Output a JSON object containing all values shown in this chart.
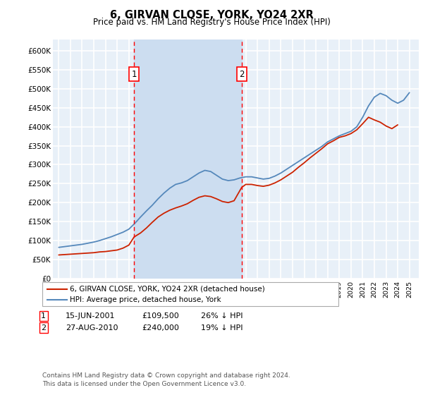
{
  "title": "6, GIRVAN CLOSE, YORK, YO24 2XR",
  "subtitle": "Price paid vs. HM Land Registry's House Price Index (HPI)",
  "ylim": [
    0,
    630000
  ],
  "yticks": [
    0,
    50000,
    100000,
    150000,
    200000,
    250000,
    300000,
    350000,
    400000,
    450000,
    500000,
    550000,
    600000
  ],
  "ytick_labels": [
    "£0",
    "£50K",
    "£100K",
    "£150K",
    "£200K",
    "£250K",
    "£300K",
    "£350K",
    "£400K",
    "£450K",
    "£500K",
    "£550K",
    "£600K"
  ],
  "xlim_start": 1994.5,
  "xlim_end": 2025.8,
  "bg_color": "#e8f0f8",
  "grid_color": "#ffffff",
  "transaction1_year": 2001.45,
  "transaction2_year": 2010.65,
  "line1_color": "#cc2200",
  "line2_color": "#5588bb",
  "shade_color": "#ccddf0",
  "legend_line1": "6, GIRVAN CLOSE, YORK, YO24 2XR (detached house)",
  "legend_line2": "HPI: Average price, detached house, York",
  "transaction_rows": [
    {
      "num": "1",
      "date": "15-JUN-2001",
      "price": "£109,500",
      "note": "26% ↓ HPI"
    },
    {
      "num": "2",
      "date": "27-AUG-2010",
      "price": "£240,000",
      "note": "19% ↓ HPI"
    }
  ],
  "footer": "Contains HM Land Registry data © Crown copyright and database right 2024.\nThis data is licensed under the Open Government Licence v3.0.",
  "hpi_years": [
    1995,
    1995.5,
    1996,
    1996.5,
    1997,
    1997.5,
    1998,
    1998.5,
    1999,
    1999.5,
    2000,
    2000.5,
    2001,
    2001.5,
    2002,
    2002.5,
    2003,
    2003.5,
    2004,
    2004.5,
    2005,
    2005.5,
    2006,
    2006.5,
    2007,
    2007.5,
    2008,
    2008.5,
    2009,
    2009.5,
    2010,
    2010.5,
    2011,
    2011.5,
    2012,
    2012.5,
    2013,
    2013.5,
    2014,
    2014.5,
    2015,
    2015.5,
    2016,
    2016.5,
    2017,
    2017.5,
    2018,
    2018.5,
    2019,
    2019.5,
    2020,
    2020.5,
    2021,
    2021.5,
    2022,
    2022.5,
    2023,
    2023.5,
    2024,
    2024.5,
    2025
  ],
  "hpi_values": [
    82000,
    84000,
    86000,
    88000,
    90000,
    93000,
    96000,
    100000,
    105000,
    110000,
    116000,
    122000,
    130000,
    145000,
    162000,
    178000,
    193000,
    210000,
    225000,
    238000,
    248000,
    252000,
    258000,
    268000,
    278000,
    285000,
    282000,
    272000,
    262000,
    258000,
    260000,
    265000,
    268000,
    268000,
    265000,
    262000,
    264000,
    270000,
    278000,
    288000,
    298000,
    308000,
    318000,
    328000,
    338000,
    348000,
    360000,
    368000,
    376000,
    382000,
    388000,
    400000,
    425000,
    455000,
    478000,
    488000,
    482000,
    470000,
    462000,
    470000,
    490000
  ],
  "red_years": [
    1995,
    1995.5,
    1996,
    1996.5,
    1997,
    1997.5,
    1998,
    1998.5,
    1999,
    1999.5,
    2000,
    2000.5,
    2001,
    2001.45,
    2002,
    2002.5,
    2003,
    2003.5,
    2004,
    2004.5,
    2005,
    2005.5,
    2006,
    2006.5,
    2007,
    2007.5,
    2008,
    2008.5,
    2009,
    2009.5,
    2010,
    2010.65,
    2011,
    2011.5,
    2012,
    2012.5,
    2013,
    2013.5,
    2014,
    2014.5,
    2015,
    2015.5,
    2016,
    2016.5,
    2017,
    2017.5,
    2018,
    2018.5,
    2019,
    2019.5,
    2020,
    2020.5,
    2021,
    2021.5,
    2022,
    2022.5,
    2023,
    2023.5,
    2024
  ],
  "red_values": [
    62000,
    63000,
    64000,
    65000,
    66000,
    67000,
    68000,
    70000,
    71000,
    73000,
    75000,
    80000,
    88000,
    109500,
    120000,
    133000,
    148000,
    162000,
    172000,
    180000,
    186000,
    191000,
    197000,
    206000,
    214000,
    218000,
    216000,
    210000,
    203000,
    200000,
    205000,
    240000,
    248000,
    248000,
    245000,
    243000,
    246000,
    252000,
    260000,
    270000,
    280000,
    293000,
    305000,
    318000,
    330000,
    342000,
    355000,
    363000,
    372000,
    376000,
    382000,
    392000,
    408000,
    425000,
    418000,
    412000,
    402000,
    395000,
    405000
  ]
}
